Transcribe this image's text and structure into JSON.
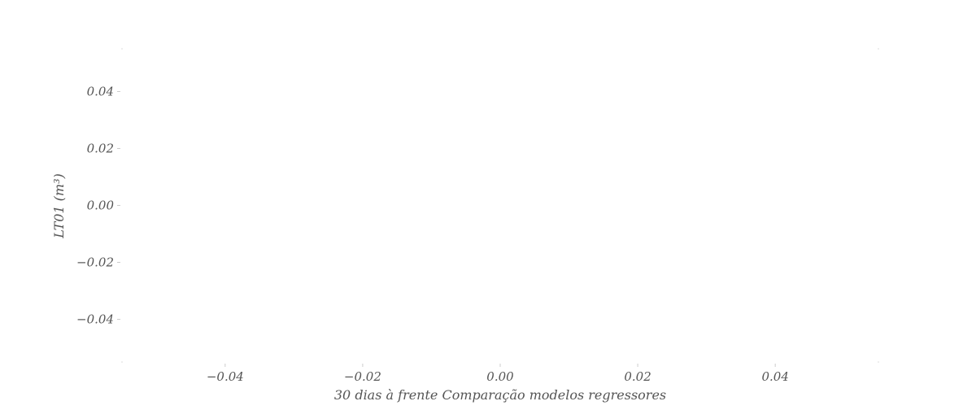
{
  "chart_data": {
    "type": "line",
    "title": "",
    "xlabel": "30 dias à frente Comparação modelos regressores",
    "ylabel": "LT01 (m³)",
    "x_ticks": [
      "−0.04",
      "−0.02",
      "0.00",
      "0.02",
      "0.04"
    ],
    "y_ticks": [
      "0.04",
      "0.02",
      "0.00",
      "−0.02",
      "−0.04"
    ],
    "xlim": [
      -0.055,
      0.055
    ],
    "ylim": [
      -0.055,
      0.055
    ],
    "x_tick_values": [
      -0.04,
      -0.02,
      0.0,
      0.02,
      0.04
    ],
    "y_tick_values": [
      0.04,
      0.02,
      0.0,
      -0.02,
      -0.04
    ],
    "grid": false,
    "legend": "none",
    "series": []
  }
}
